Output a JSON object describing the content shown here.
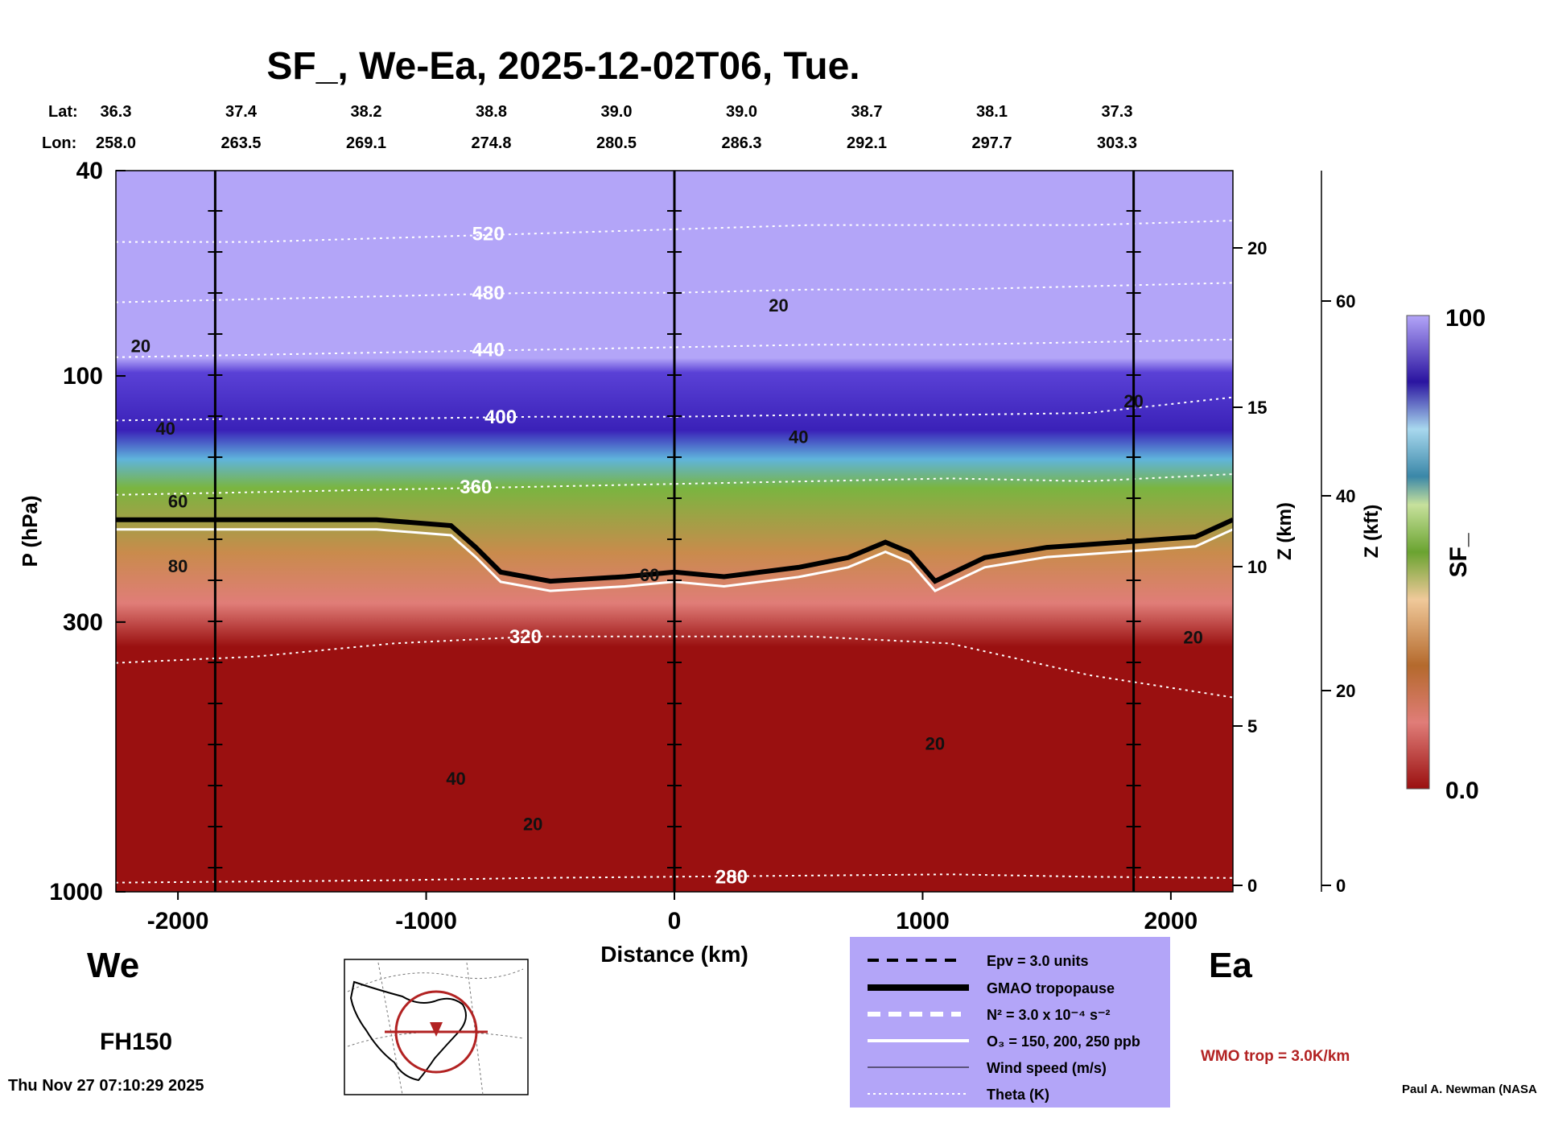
{
  "chart_data": {
    "type": "heatmap",
    "title": "SF_, We-Ea, 2025-12-02T06, Tue.",
    "xlabel": "Distance (km)",
    "ylabel": "P (hPa)",
    "z_km_label": "Z (km)",
    "z_kft_label": "Z (kft)",
    "colorbar_label": "SF_",
    "colorbar_range": [
      0.0,
      100
    ],
    "colorbar_tick_labels": [
      "0.0",
      "100"
    ],
    "xlim": [
      -2250,
      2250
    ],
    "x_ticks": [
      -2000,
      -1000,
      0,
      1000,
      2000
    ],
    "x_tick_labels": [
      "-2000",
      "-1000",
      "0",
      "1000",
      "2000"
    ],
    "y_scale": "log",
    "ylim_hpa": [
      1000,
      40
    ],
    "y_ticks": [
      40,
      100,
      300,
      1000
    ],
    "y_tick_labels": [
      "40",
      "100",
      "300",
      "1000"
    ],
    "z_km_ticks": [
      0,
      5,
      10,
      15,
      20
    ],
    "z_km_tick_labels": [
      "0",
      "5",
      "10",
      "15",
      "20"
    ],
    "z_kft_ticks": [
      0,
      20,
      40,
      60
    ],
    "z_kft_tick_labels": [
      "0",
      "20",
      "40",
      "60"
    ],
    "lat_label": "Lat:",
    "lon_label": "Lon:",
    "stations_x": [
      -2250,
      -1750,
      -1250,
      -750,
      -250,
      250,
      750,
      1250,
      1750
    ],
    "lat_values": [
      "36.3",
      "37.4",
      "38.2",
      "38.8",
      "39.0",
      "39.0",
      "38.7",
      "38.1",
      "37.3"
    ],
    "lon_values": [
      "258.0",
      "263.5",
      "269.1",
      "274.8",
      "280.5",
      "286.3",
      "292.1",
      "297.7",
      "303.3"
    ],
    "vertical_lines_x": [
      -1850,
      0,
      1850
    ],
    "tropopause": {
      "x": [
        -2250,
        -1800,
        -1200,
        -900,
        -800,
        -700,
        -500,
        -200,
        0,
        200,
        500,
        700,
        850,
        950,
        1050,
        1250,
        1500,
        1800,
        2100,
        2250
      ],
      "hpa": [
        190,
        190,
        190,
        195,
        215,
        240,
        250,
        245,
        240,
        245,
        235,
        225,
        210,
        220,
        250,
        225,
        215,
        210,
        205,
        190
      ]
    },
    "theta_contours": [
      {
        "label": "520",
        "hpa": [
          55,
          55,
          54,
          53,
          52,
          51,
          51,
          51,
          50
        ]
      },
      {
        "label": "480",
        "hpa": [
          72,
          71,
          70,
          69,
          69,
          68,
          68,
          67,
          66
        ]
      },
      {
        "label": "440",
        "hpa": [
          92,
          91,
          90,
          89,
          88,
          87,
          87,
          86,
          85
        ]
      },
      {
        "label": "400",
        "hpa": [
          122,
          121,
          121,
          120,
          120,
          119,
          119,
          118,
          110
        ]
      },
      {
        "label": "360",
        "hpa": [
          170,
          168,
          166,
          164,
          162,
          160,
          158,
          160,
          155
        ]
      },
      {
        "label": "320",
        "hpa": [
          360,
          350,
          330,
          320,
          320,
          320,
          330,
          380,
          420
        ]
      },
      {
        "label": "280",
        "hpa": [
          960,
          955,
          950,
          940,
          935,
          930,
          925,
          935,
          940
        ]
      }
    ],
    "theta_x": [
      -2250,
      -1690,
      -1130,
      -570,
      -10,
      550,
      1110,
      1670,
      2250
    ],
    "theta_label_positions_x": [
      -750,
      -750,
      -750,
      -700,
      -800,
      -600,
      230
    ],
    "wind_labels": [
      "20",
      "20",
      "40",
      "40",
      "60",
      "80",
      "60",
      "40",
      "20",
      "20",
      "20",
      "20"
    ],
    "wind_label_x": [
      420,
      -2150,
      -2050,
      500,
      -2000,
      -2000,
      -100,
      -880,
      1050,
      2090,
      1850,
      -570
    ],
    "wind_label_hpa": [
      75,
      90,
      130,
      135,
      180,
      240,
      250,
      620,
      530,
      330,
      115,
      760
    ],
    "legend": {
      "items": [
        "Epv = 3.0 units",
        "GMAO tropopause",
        "N² = 3.0 x 10⁻⁴ s⁻²",
        "O₃ = 150, 200, 250 ppb",
        "Wind speed (m/s)",
        "Theta (K)"
      ]
    },
    "wmo_label": "WMO trop = 3.0K/km",
    "left_label": "We",
    "right_label": "Ea",
    "forecast_hour": "FH150",
    "timestamp": "Thu Nov 27 07:10:29 2025",
    "credit": "Paul A. Newman (NASA",
    "colors": {
      "band_top": "#b3a5f8",
      "stratosphere_dark": "#3a21b8",
      "stratosphere_mid": "#5a41d6",
      "tropopause_cyan": "#5fb4dc",
      "green": "#7ab540",
      "tan": "#c98b4c",
      "pink": "#e07d78",
      "dark_red": "#9a1010",
      "wmo_red": "#b22222",
      "legend_bg": "#b3a5f8"
    }
  }
}
